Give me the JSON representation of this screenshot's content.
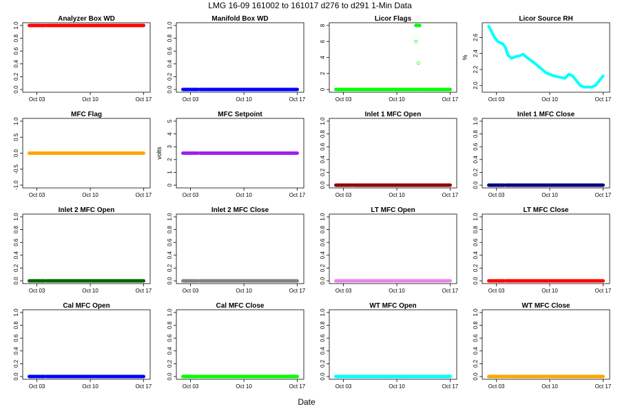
{
  "figure": {
    "title": "LMG   16-09     161002 to 161017     d276 to d291   1-Min Data",
    "xlabel": "Date"
  },
  "chart_data": [
    {
      "type": "scatter",
      "title": "Analyzer Box WD",
      "ylabel": "",
      "color": "#ff0000",
      "ylim": [
        0,
        1
      ],
      "yticks": [
        "0.0",
        "0.2",
        "0.4",
        "0.6",
        "0.8",
        "1.0"
      ],
      "x_ticks": [
        "Oct 03",
        "Oct 10",
        "Oct 17"
      ],
      "segments": [
        {
          "x": [
            "2016-10-02 12:00",
            "2016-10-04 12:00"
          ],
          "y": [
            1,
            1
          ]
        },
        {
          "x": [
            "2016-10-04 18:00",
            "2016-10-17 12:00"
          ],
          "y": [
            1,
            1
          ]
        }
      ],
      "points": []
    },
    {
      "type": "scatter",
      "title": "Manifold Box WD",
      "ylabel": "",
      "color": "#0000ff",
      "ylim": [
        0,
        1
      ],
      "yticks": [
        "0.0",
        "0.2",
        "0.4",
        "0.6",
        "0.8",
        "1.0"
      ],
      "x_ticks": [
        "Oct 03",
        "Oct 10",
        "Oct 17"
      ],
      "segments": [
        {
          "x": [
            "2016-10-02 12:00",
            "2016-10-04 12:00"
          ],
          "y": [
            0,
            0
          ]
        },
        {
          "x": [
            "2016-10-04 18:00",
            "2016-10-17 12:00"
          ],
          "y": [
            0,
            0
          ]
        }
      ],
      "points": []
    },
    {
      "type": "scatter",
      "title": "Licor Flags",
      "ylabel": "",
      "color": "#00ff00",
      "ylim": [
        0,
        8
      ],
      "yticks": [
        "0",
        "2",
        "4",
        "6",
        "8"
      ],
      "x_ticks": [
        "Oct 03",
        "Oct 10",
        "Oct 17"
      ],
      "segments": [
        {
          "x": [
            "2016-10-02 12:00",
            "2016-10-04 12:00"
          ],
          "y": [
            0,
            0
          ]
        },
        {
          "x": [
            "2016-10-04 18:00",
            "2016-10-13 12:00"
          ],
          "y": [
            0,
            0
          ]
        },
        {
          "x": [
            "2016-10-13 00:00",
            "2016-10-13 12:00"
          ],
          "y": [
            8,
            8
          ]
        },
        {
          "x": [
            "2016-10-13 16:00",
            "2016-10-17 12:00"
          ],
          "y": [
            0,
            0
          ]
        }
      ],
      "points": [
        {
          "x": "2016-10-13 00:00",
          "y": 6
        },
        {
          "x": "2016-10-13 08:00",
          "y": 3.3
        }
      ]
    },
    {
      "type": "line",
      "title": "Licor Source RH",
      "ylabel": "%",
      "color": "#00ffff",
      "ylim": [
        1.95,
        2.75
      ],
      "yticks": [
        "2.0",
        "2.2",
        "2.4",
        "2.6"
      ],
      "x_ticks": [
        "Oct 03",
        "Oct 10",
        "Oct 17"
      ],
      "x": [
        "2016-10-02 12:00",
        "2016-10-02 20:00",
        "2016-10-03 06:00",
        "2016-10-03 16:00",
        "2016-10-04 08:00",
        "2016-10-04 16:00",
        "2016-10-05 00:00",
        "2016-10-05 12:00",
        "2016-10-06 00:00",
        "2016-10-06 12:00",
        "2016-10-07 00:00",
        "2016-10-07 12:00",
        "2016-10-08 12:00",
        "2016-10-09 12:00",
        "2016-10-10 00:00",
        "2016-10-11 00:00",
        "2016-10-12 00:00",
        "2016-10-12 12:00",
        "2016-10-13 00:00",
        "2016-10-13 12:00",
        "2016-10-14 00:00",
        "2016-10-14 12:00",
        "2016-10-15 00:00",
        "2016-10-15 12:00",
        "2016-10-16 00:00",
        "2016-10-16 12:00",
        "2016-10-17 00:00",
        "2016-10-17 12:00"
      ],
      "y": [
        2.74,
        2.68,
        2.6,
        2.55,
        2.52,
        2.48,
        2.38,
        2.34,
        2.36,
        2.37,
        2.39,
        2.35,
        2.28,
        2.2,
        2.16,
        2.12,
        2.1,
        2.09,
        2.14,
        2.12,
        2.06,
        2.0,
        1.98,
        1.98,
        1.98,
        2.0,
        2.06,
        2.12
      ],
      "points": []
    },
    {
      "type": "scatter",
      "title": "MFC Flag",
      "ylabel": "",
      "color": "#ffa500",
      "ylim": [
        -1,
        1
      ],
      "yticks": [
        "-1.0",
        "-0.5",
        "0.0",
        "0.5",
        "1.0"
      ],
      "x_ticks": [
        "Oct 03",
        "Oct 10",
        "Oct 17"
      ],
      "segments": [
        {
          "x": [
            "2016-10-02 12:00",
            "2016-10-04 12:00"
          ],
          "y": [
            0,
            0
          ]
        },
        {
          "x": [
            "2016-10-04 18:00",
            "2016-10-17 12:00"
          ],
          "y": [
            0,
            0
          ]
        }
      ],
      "points": []
    },
    {
      "type": "scatter",
      "title": "MFC Setpoint",
      "ylabel": "volts",
      "color": "#a020f0",
      "ylim": [
        0,
        5
      ],
      "yticks": [
        "0",
        "1",
        "2",
        "3",
        "4",
        "5"
      ],
      "x_ticks": [
        "Oct 03",
        "Oct 10",
        "Oct 17"
      ],
      "segments": [
        {
          "x": [
            "2016-10-02 12:00",
            "2016-10-04 12:00"
          ],
          "y": [
            2.5,
            2.5
          ]
        },
        {
          "x": [
            "2016-10-04 18:00",
            "2016-10-17 12:00"
          ],
          "y": [
            2.5,
            2.5
          ]
        }
      ],
      "points": []
    },
    {
      "type": "scatter",
      "title": "Inlet 1 MFC Open",
      "ylabel": "",
      "color": "#8b0000",
      "ylim": [
        0,
        1
      ],
      "yticks": [
        "0.0",
        "0.2",
        "0.4",
        "0.6",
        "0.8",
        "1.0"
      ],
      "x_ticks": [
        "Oct 03",
        "Oct 10",
        "Oct 17"
      ],
      "segments": [
        {
          "x": [
            "2016-10-02 12:00",
            "2016-10-04 12:00"
          ],
          "y": [
            0,
            0
          ]
        },
        {
          "x": [
            "2016-10-04 18:00",
            "2016-10-17 12:00"
          ],
          "y": [
            0,
            0
          ]
        }
      ],
      "points": []
    },
    {
      "type": "scatter",
      "title": "Inlet 1 MFC Close",
      "ylabel": "",
      "color": "#000080",
      "ylim": [
        0,
        1
      ],
      "yticks": [
        "0.0",
        "0.2",
        "0.4",
        "0.6",
        "0.8",
        "1.0"
      ],
      "x_ticks": [
        "Oct 03",
        "Oct 10",
        "Oct 17"
      ],
      "segments": [
        {
          "x": [
            "2016-10-02 12:00",
            "2016-10-04 12:00"
          ],
          "y": [
            0,
            0
          ]
        },
        {
          "x": [
            "2016-10-04 18:00",
            "2016-10-17 12:00"
          ],
          "y": [
            0,
            0
          ]
        }
      ],
      "points": []
    },
    {
      "type": "scatter",
      "title": "Inlet 2 MFC Open",
      "ylabel": "",
      "color": "#006400",
      "ylim": [
        0,
        1
      ],
      "yticks": [
        "0.0",
        "0.2",
        "0.4",
        "0.6",
        "0.8",
        "1.0"
      ],
      "x_ticks": [
        "Oct 03",
        "Oct 10",
        "Oct 17"
      ],
      "segments": [
        {
          "x": [
            "2016-10-02 12:00",
            "2016-10-04 12:00"
          ],
          "y": [
            0,
            0
          ]
        },
        {
          "x": [
            "2016-10-04 18:00",
            "2016-10-17 12:00"
          ],
          "y": [
            0,
            0
          ]
        }
      ],
      "points": []
    },
    {
      "type": "scatter",
      "title": "Inlet 2 MFC Close",
      "ylabel": "",
      "color": "#808080",
      "ylim": [
        0,
        1
      ],
      "yticks": [
        "0.0",
        "0.2",
        "0.4",
        "0.6",
        "0.8",
        "1.0"
      ],
      "x_ticks": [
        "Oct 03",
        "Oct 10",
        "Oct 17"
      ],
      "segments": [
        {
          "x": [
            "2016-10-02 12:00",
            "2016-10-04 12:00"
          ],
          "y": [
            0,
            0
          ]
        },
        {
          "x": [
            "2016-10-04 18:00",
            "2016-10-17 12:00"
          ],
          "y": [
            0,
            0
          ]
        }
      ],
      "points": []
    },
    {
      "type": "scatter",
      "title": "LT MFC Open",
      "ylabel": "",
      "color": "#ee82ee",
      "ylim": [
        0,
        1
      ],
      "yticks": [
        "0.0",
        "0.2",
        "0.4",
        "0.6",
        "0.8",
        "1.0"
      ],
      "x_ticks": [
        "Oct 03",
        "Oct 10",
        "Oct 17"
      ],
      "segments": [
        {
          "x": [
            "2016-10-02 12:00",
            "2016-10-04 12:00"
          ],
          "y": [
            0,
            0
          ]
        },
        {
          "x": [
            "2016-10-04 18:00",
            "2016-10-17 12:00"
          ],
          "y": [
            0,
            0
          ]
        }
      ],
      "points": []
    },
    {
      "type": "scatter",
      "title": "LT MFC Close",
      "ylabel": "",
      "color": "#ff0000",
      "ylim": [
        0,
        1
      ],
      "yticks": [
        "0.0",
        "0.2",
        "0.4",
        "0.6",
        "0.8",
        "1.0"
      ],
      "x_ticks": [
        "Oct 03",
        "Oct 10",
        "Oct 17"
      ],
      "segments": [
        {
          "x": [
            "2016-10-02 12:00",
            "2016-10-04 12:00"
          ],
          "y": [
            0,
            0
          ]
        },
        {
          "x": [
            "2016-10-04 18:00",
            "2016-10-17 12:00"
          ],
          "y": [
            0,
            0
          ]
        }
      ],
      "points": []
    },
    {
      "type": "scatter",
      "title": "Cal MFC Open",
      "ylabel": "",
      "color": "#0000ff",
      "ylim": [
        0,
        1
      ],
      "yticks": [
        "0.0",
        "0.2",
        "0.4",
        "0.6",
        "0.8",
        "1.0"
      ],
      "x_ticks": [
        "Oct 03",
        "Oct 10",
        "Oct 17"
      ],
      "segments": [
        {
          "x": [
            "2016-10-02 12:00",
            "2016-10-04 12:00"
          ],
          "y": [
            0,
            0
          ]
        },
        {
          "x": [
            "2016-10-04 18:00",
            "2016-10-17 12:00"
          ],
          "y": [
            0,
            0
          ]
        }
      ],
      "points": []
    },
    {
      "type": "scatter",
      "title": "Cal MFC Close",
      "ylabel": "",
      "color": "#00ff00",
      "ylim": [
        0,
        1
      ],
      "yticks": [
        "0.0",
        "0.2",
        "0.4",
        "0.6",
        "0.8",
        "1.0"
      ],
      "x_ticks": [
        "Oct 03",
        "Oct 10",
        "Oct 17"
      ],
      "segments": [
        {
          "x": [
            "2016-10-02 12:00",
            "2016-10-04 12:00"
          ],
          "y": [
            0,
            0
          ]
        },
        {
          "x": [
            "2016-10-04 18:00",
            "2016-10-17 12:00"
          ],
          "y": [
            0,
            0
          ]
        }
      ],
      "points": []
    },
    {
      "type": "scatter",
      "title": "WT MFC Open",
      "ylabel": "",
      "color": "#00ffff",
      "ylim": [
        0,
        1
      ],
      "yticks": [
        "0.0",
        "0.2",
        "0.4",
        "0.6",
        "0.8",
        "1.0"
      ],
      "x_ticks": [
        "Oct 03",
        "Oct 10",
        "Oct 17"
      ],
      "segments": [
        {
          "x": [
            "2016-10-02 12:00",
            "2016-10-04 12:00"
          ],
          "y": [
            0,
            0
          ]
        },
        {
          "x": [
            "2016-10-04 18:00",
            "2016-10-17 12:00"
          ],
          "y": [
            0,
            0
          ]
        }
      ],
      "points": []
    },
    {
      "type": "scatter",
      "title": "WT MFC Close",
      "ylabel": "",
      "color": "#ffa500",
      "ylim": [
        0,
        1
      ],
      "yticks": [
        "0.0",
        "0.2",
        "0.4",
        "0.6",
        "0.8",
        "1.0"
      ],
      "x_ticks": [
        "Oct 03",
        "Oct 10",
        "Oct 17"
      ],
      "segments": [
        {
          "x": [
            "2016-10-02 12:00",
            "2016-10-04 12:00"
          ],
          "y": [
            0,
            0
          ]
        },
        {
          "x": [
            "2016-10-04 18:00",
            "2016-10-17 12:00"
          ],
          "y": [
            0,
            0
          ]
        }
      ],
      "points": []
    }
  ]
}
